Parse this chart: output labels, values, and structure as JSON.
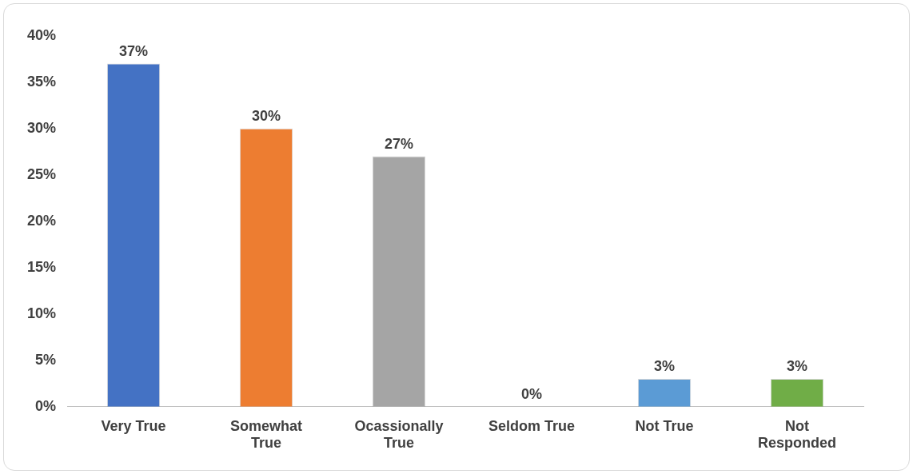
{
  "chart_data": {
    "type": "bar",
    "categories": [
      "Very True",
      "Somewhat True",
      "Ocassionally True",
      "Seldom True",
      "Not True",
      "Not Responded"
    ],
    "values": [
      37,
      30,
      27,
      0,
      3,
      3
    ],
    "colors": [
      "#4472c4",
      "#ed7d31",
      "#a5a5a5",
      "#ffc000",
      "#5b9bd5",
      "#70ad47"
    ],
    "value_labels": [
      "37%",
      "30%",
      "27%",
      "0%",
      "3%",
      "3%"
    ],
    "ylim": [
      0,
      40
    ],
    "yticks": [
      {
        "value": 0,
        "label": "0%"
      },
      {
        "value": 5,
        "label": "5%"
      },
      {
        "value": 10,
        "label": "10%"
      },
      {
        "value": 15,
        "label": "15%"
      },
      {
        "value": 20,
        "label": "20%"
      },
      {
        "value": 25,
        "label": "25%"
      },
      {
        "value": 30,
        "label": "30%"
      },
      {
        "value": 35,
        "label": "35%"
      },
      {
        "value": 40,
        "label": "40%"
      }
    ],
    "grid": false,
    "legend": false
  }
}
